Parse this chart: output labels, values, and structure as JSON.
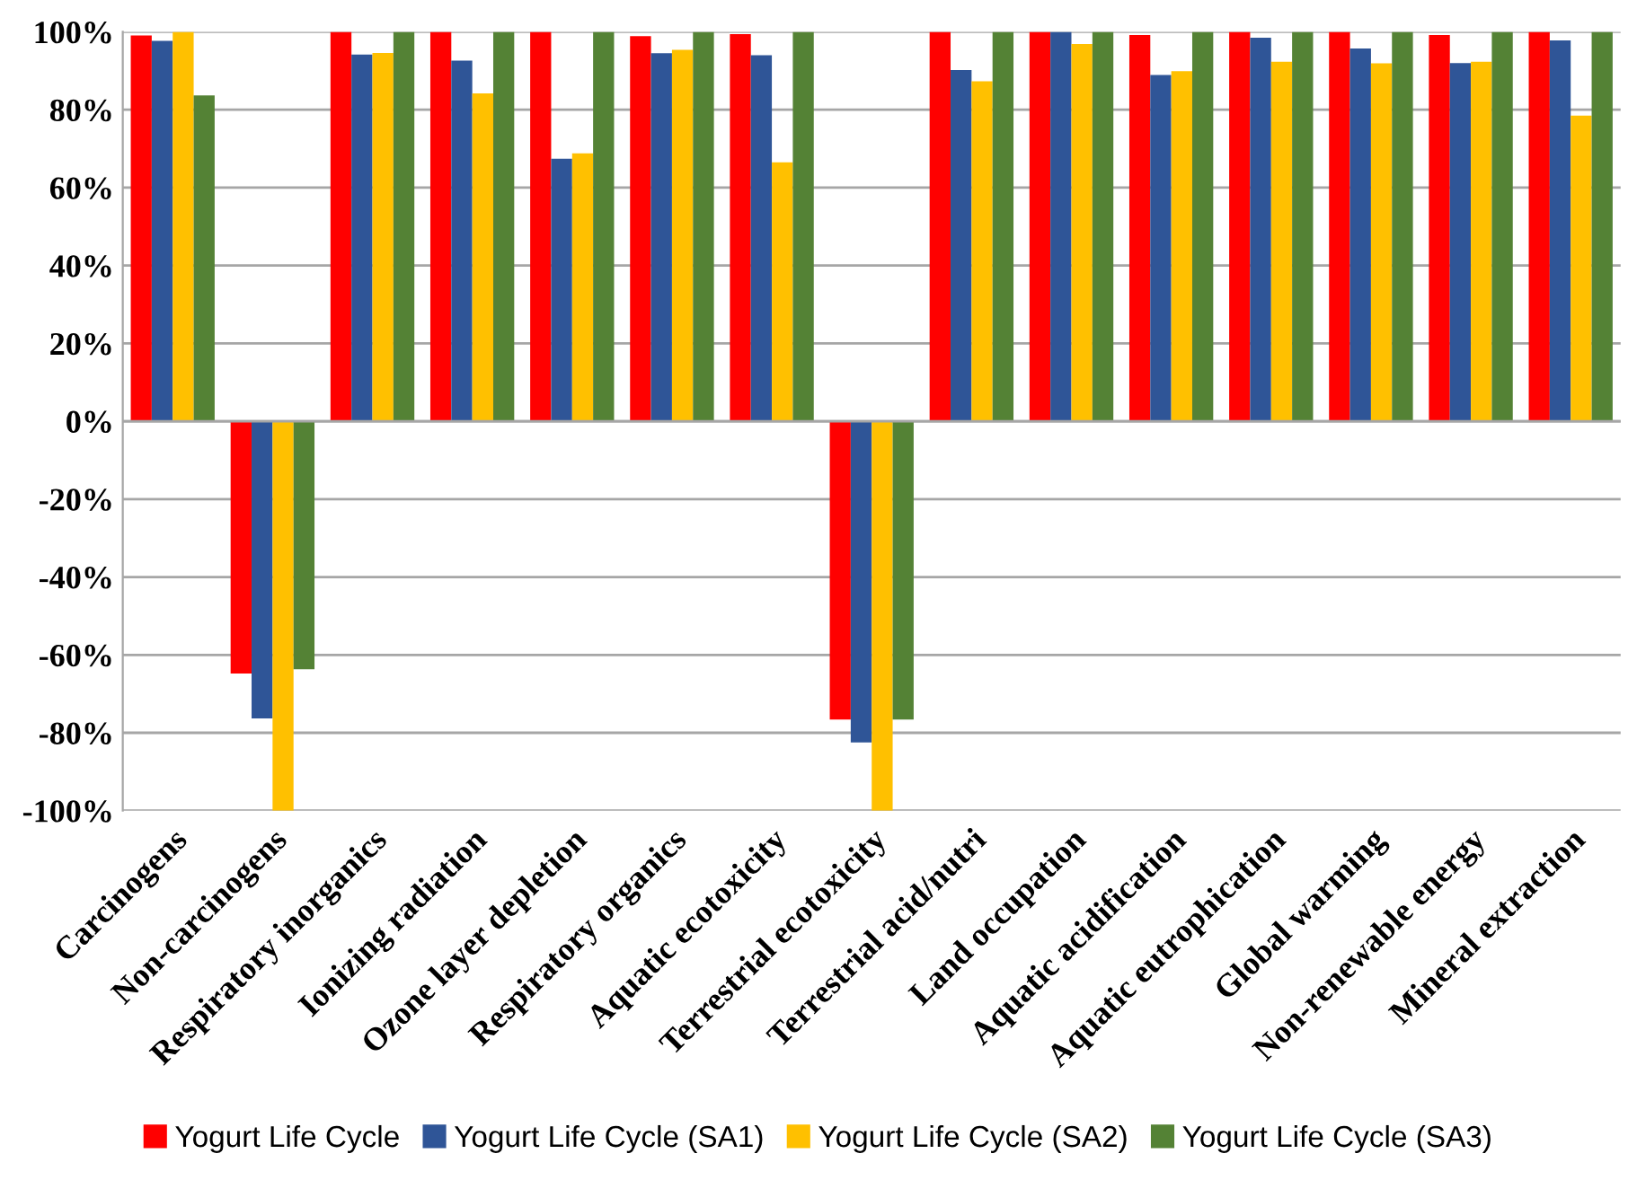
{
  "chart_data": {
    "type": "bar",
    "categories": [
      "Carcinogens",
      "Non-carcinogens",
      "Respiratory inorganics",
      "Ionizing radiation",
      "Ozone layer depletion",
      "Respiratory organics",
      "Aquatic ecotoxicity",
      "Terrestrial ecotoxicity",
      "Terrestrial acid/nutri",
      "Land occupation",
      "Aquatic acidification",
      "Aquatic eutrophication",
      "Global warming",
      "Non-renewable energy",
      "Mineral extraction"
    ],
    "series": [
      {
        "name": "Yogurt Life Cycle",
        "color": "#ff0000",
        "values": [
          99.1,
          -64.8,
          100,
          100,
          100,
          98.9,
          99.4,
          -76.6,
          100,
          100,
          99.2,
          100,
          100,
          99.2,
          100
        ]
      },
      {
        "name": "Yogurt Life Cycle (SA1)",
        "color": "#2f5597",
        "values": [
          97.7,
          -76.3,
          94.2,
          92.6,
          67.4,
          94.5,
          94.0,
          -82.5,
          90.2,
          100,
          88.9,
          98.5,
          95.7,
          92.0,
          97.8
        ]
      },
      {
        "name": "Yogurt Life Cycle (SA2)",
        "color": "#ffc000",
        "values": [
          100,
          -100,
          94.6,
          84.2,
          68.8,
          95.4,
          66.5,
          -100,
          87.3,
          96.9,
          89.9,
          92.3,
          91.9,
          92.3,
          78.5
        ]
      },
      {
        "name": "Yogurt Life Cycle (SA3)",
        "color": "#548235",
        "values": [
          83.7,
          -63.7,
          100,
          100,
          100,
          100,
          100,
          -76.6,
          100,
          100,
          100,
          100,
          100,
          100,
          100
        ]
      }
    ],
    "ylim": [
      -100,
      100
    ],
    "yticks": [
      {
        "value": -100,
        "label": "-100%"
      },
      {
        "value": -80,
        "label": "-80%"
      },
      {
        "value": -60,
        "label": "-60%"
      },
      {
        "value": -40,
        "label": "-40%"
      },
      {
        "value": -20,
        "label": "-20%"
      },
      {
        "value": 0,
        "label": "0%"
      },
      {
        "value": 20,
        "label": "20%"
      },
      {
        "value": 40,
        "label": "40%"
      },
      {
        "value": 60,
        "label": "60%"
      },
      {
        "value": 80,
        "label": "80%"
      },
      {
        "value": 100,
        "label": "100%"
      }
    ],
    "grid": "y",
    "legend": "bottom"
  }
}
